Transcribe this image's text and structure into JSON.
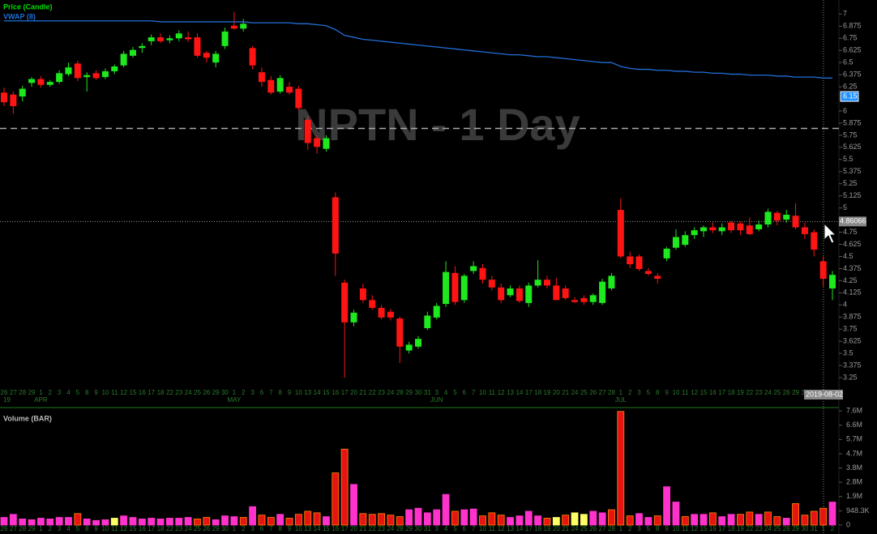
{
  "chart_data": [
    {
      "type": "candlestick",
      "watermark": "NPTN - 1 Day",
      "categories": [
        "26",
        "27",
        "28",
        "29",
        "1",
        "2",
        "3",
        "4",
        "5",
        "8",
        "9",
        "10",
        "11",
        "12",
        "15",
        "16",
        "17",
        "18",
        "22",
        "23",
        "24",
        "25",
        "26",
        "29",
        "30",
        "1",
        "2",
        "3",
        "6",
        "7",
        "8",
        "9",
        "10",
        "13",
        "14",
        "15",
        "16",
        "17",
        "20",
        "21",
        "22",
        "23",
        "24",
        "28",
        "29",
        "30",
        "31",
        "3",
        "4",
        "5",
        "6",
        "7",
        "10",
        "11",
        "12",
        "13",
        "14",
        "17",
        "18",
        "19",
        "20",
        "21",
        "24",
        "25",
        "26",
        "27",
        "28",
        "1",
        "2",
        "3",
        "5",
        "8",
        "9",
        "10",
        "11",
        "12",
        "15",
        "16",
        "17",
        "18",
        "19",
        "22",
        "23",
        "24",
        "25",
        "26",
        "29",
        "30",
        "31",
        "1",
        "2"
      ],
      "months": [
        {
          "label": "APR",
          "category": 4
        },
        {
          "label": "MAY",
          "category": 25
        },
        {
          "label": "JUN",
          "category": 47
        },
        {
          "label": "JUL",
          "category": 67
        }
      ],
      "year_label": "19",
      "series": [
        {
          "name": "Price (Candle)",
          "color": "#00e000",
          "up_color": "#1ee81e",
          "down_color": "#ff1414",
          "open": [
            6.19,
            6.17,
            6.15,
            6.29,
            6.33,
            6.27,
            6.3,
            6.38,
            6.49,
            6.35,
            6.39,
            6.35,
            6.41,
            6.47,
            6.57,
            6.65,
            6.72,
            6.76,
            6.73,
            6.75,
            6.76,
            6.76,
            6.6,
            6.5,
            6.67,
            6.88,
            6.85,
            6.65,
            6.4,
            6.32,
            6.2,
            6.25,
            6.23,
            5.91,
            5.72,
            5.61,
            5.11,
            4.23,
            3.82,
            4.17,
            4.05,
            3.97,
            3.93,
            3.86,
            3.53,
            3.57,
            3.76,
            3.87,
            4.01,
            4.33,
            4.05,
            4.35,
            4.38,
            4.26,
            4.18,
            4.1,
            4.17,
            4.02,
            4.2,
            4.26,
            4.2,
            4.17,
            4.05,
            4.07,
            4.03,
            4.02,
            4.17,
            4.98,
            4.5,
            4.5,
            4.35,
            4.3,
            4.48,
            4.59,
            4.62,
            4.72,
            4.76,
            4.8,
            4.76,
            4.85,
            4.84,
            4.82,
            4.78,
            4.83,
            4.95,
            4.88,
            4.92,
            4.8,
            4.75,
            4.45,
            4.17
          ],
          "high": [
            6.24,
            6.2,
            6.26,
            6.35,
            6.36,
            6.32,
            6.42,
            6.5,
            6.52,
            6.4,
            6.42,
            6.44,
            6.48,
            6.62,
            6.66,
            6.7,
            6.79,
            6.8,
            6.78,
            6.83,
            6.82,
            6.8,
            6.62,
            6.62,
            6.86,
            7.02,
            6.95,
            6.67,
            6.45,
            6.36,
            6.37,
            6.3,
            6.26,
            5.95,
            5.75,
            5.75,
            5.16,
            4.26,
            3.95,
            4.22,
            4.1,
            4.0,
            3.96,
            3.88,
            3.62,
            3.68,
            3.93,
            4.02,
            4.45,
            4.4,
            4.32,
            4.45,
            4.42,
            4.3,
            4.22,
            4.2,
            4.2,
            4.23,
            4.46,
            4.3,
            4.28,
            4.2,
            4.08,
            4.1,
            4.12,
            4.27,
            4.33,
            5.1,
            4.55,
            4.52,
            4.38,
            4.33,
            4.6,
            4.78,
            4.76,
            4.8,
            4.82,
            4.85,
            4.84,
            4.87,
            4.86,
            4.9,
            4.87,
            4.99,
            4.97,
            4.98,
            5.05,
            4.85,
            4.78,
            4.5,
            4.35
          ],
          "low": [
            6.05,
            5.97,
            6.1,
            6.25,
            6.24,
            6.25,
            6.28,
            6.36,
            6.31,
            6.2,
            6.32,
            6.33,
            6.38,
            6.45,
            6.55,
            6.6,
            6.68,
            6.7,
            6.7,
            6.72,
            6.71,
            6.55,
            6.5,
            6.45,
            6.64,
            6.84,
            6.82,
            6.43,
            6.25,
            6.17,
            6.18,
            6.17,
            6.01,
            5.6,
            5.56,
            5.58,
            4.3,
            3.25,
            3.78,
            4.02,
            3.95,
            3.85,
            3.84,
            3.4,
            3.5,
            3.55,
            3.74,
            3.85,
            3.98,
            4.0,
            4.02,
            4.32,
            4.22,
            4.15,
            4.02,
            4.08,
            4.02,
            3.98,
            4.18,
            4.17,
            4.05,
            4.05,
            4.02,
            4.0,
            4.0,
            4.0,
            4.15,
            4.48,
            4.38,
            4.35,
            4.3,
            4.22,
            4.45,
            4.57,
            4.6,
            4.68,
            4.7,
            4.74,
            4.72,
            4.74,
            4.72,
            4.72,
            4.76,
            4.8,
            4.82,
            4.85,
            4.78,
            4.68,
            4.5,
            4.19,
            4.05
          ],
          "close": [
            6.09,
            6.05,
            6.23,
            6.33,
            6.27,
            6.3,
            6.39,
            6.45,
            6.34,
            6.37,
            6.34,
            6.41,
            6.46,
            6.59,
            6.63,
            6.67,
            6.76,
            6.72,
            6.75,
            6.8,
            6.74,
            6.57,
            6.55,
            6.59,
            6.82,
            6.85,
            6.9,
            6.47,
            6.3,
            6.19,
            6.34,
            6.19,
            6.03,
            5.67,
            5.63,
            5.72,
            4.53,
            3.82,
            3.92,
            4.05,
            3.97,
            3.87,
            3.87,
            3.57,
            3.59,
            3.65,
            3.89,
            3.99,
            4.34,
            4.03,
            4.3,
            4.4,
            4.26,
            4.18,
            4.05,
            4.17,
            4.04,
            4.2,
            4.26,
            4.2,
            4.05,
            4.07,
            4.03,
            4.03,
            4.1,
            4.24,
            4.3,
            4.5,
            4.42,
            4.37,
            4.32,
            4.27,
            4.58,
            4.7,
            4.72,
            4.77,
            4.8,
            4.77,
            4.8,
            4.77,
            4.77,
            4.73,
            4.83,
            4.96,
            4.87,
            4.93,
            4.8,
            4.73,
            4.57,
            4.27,
            4.31
          ]
        },
        {
          "name": "VWAP (8)",
          "color": "#1f6fd8",
          "values": [
            6.93,
            6.93,
            6.93,
            6.93,
            6.93,
            6.93,
            6.93,
            6.93,
            6.93,
            6.93,
            6.93,
            6.93,
            6.93,
            6.93,
            6.93,
            6.93,
            6.93,
            6.92,
            6.92,
            6.92,
            6.92,
            6.92,
            6.92,
            6.92,
            6.92,
            6.92,
            6.92,
            6.91,
            6.91,
            6.91,
            6.91,
            6.91,
            6.9,
            6.9,
            6.89,
            6.88,
            6.84,
            6.78,
            6.76,
            6.74,
            6.73,
            6.72,
            6.71,
            6.7,
            6.69,
            6.68,
            6.67,
            6.66,
            6.65,
            6.64,
            6.63,
            6.62,
            6.61,
            6.6,
            6.59,
            6.58,
            6.58,
            6.57,
            6.56,
            6.56,
            6.55,
            6.54,
            6.53,
            6.52,
            6.51,
            6.5,
            6.5,
            6.46,
            6.44,
            6.43,
            6.43,
            6.42,
            6.42,
            6.41,
            6.41,
            6.4,
            6.4,
            6.39,
            6.39,
            6.38,
            6.38,
            6.37,
            6.37,
            6.37,
            6.36,
            6.36,
            6.35,
            6.35,
            6.35,
            6.34,
            6.34
          ]
        }
      ],
      "ylim": [
        3.15,
        7.12
      ],
      "yticks": [
        7,
        6.875,
        6.75,
        6.625,
        6.5,
        6.375,
        6.25,
        6,
        5.875,
        5.75,
        5.625,
        5.5,
        5.375,
        5.25,
        5.125,
        5,
        4.875,
        4.75,
        4.625,
        4.5,
        4.375,
        4.25,
        4.125,
        4,
        3.875,
        3.75,
        3.625,
        3.5,
        3.375,
        3.25
      ],
      "reference_line": 5.82,
      "last_label": 6.15,
      "cursor_value": 4.86066,
      "cursor_date": "2019-08-02"
    },
    {
      "type": "bar",
      "title": "Volume (BAR)",
      "values": [
        510000,
        714000,
        408000,
        357000,
        459000,
        408000,
        510000,
        510000,
        765000,
        408000,
        306000,
        357000,
        459000,
        612000,
        510000,
        408000,
        459000,
        408000,
        459000,
        459000,
        510000,
        408000,
        510000,
        357000,
        612000,
        561000,
        510000,
        1224000,
        663000,
        510000,
        714000,
        459000,
        714000,
        918000,
        816000,
        561000,
        3468000,
        5049000,
        2703000,
        765000,
        714000,
        765000,
        663000,
        561000,
        1020000,
        1122000,
        816000,
        1020000,
        2040000,
        918000,
        1020000,
        1071000,
        612000,
        816000,
        663000,
        510000,
        612000,
        918000,
        612000,
        459000,
        510000,
        663000,
        816000,
        714000,
        918000,
        816000,
        1020000,
        7550000,
        612000,
        765000,
        510000,
        612000,
        2550000,
        1530000,
        561000,
        714000,
        714000,
        816000,
        561000,
        714000,
        714000,
        867000,
        714000,
        867000,
        561000,
        459000,
        1428000,
        663000,
        918000,
        1122000,
        1530000
      ],
      "colors": [
        "#ff33cc",
        "#ff33cc",
        "#ff33cc",
        "#ff33cc",
        "#ff33cc",
        "#ff33cc",
        "#ff33cc",
        "#ff33cc",
        "#e81414",
        "#ff33cc",
        "#ff33cc",
        "#ff33cc",
        "#ffff66",
        "#ff33cc",
        "#ff33cc",
        "#ff33cc",
        "#ff33cc",
        "#ff33cc",
        "#ff33cc",
        "#ff33cc",
        "#ff33cc",
        "#e81414",
        "#e81414",
        "#ff33cc",
        "#ff33cc",
        "#ff33cc",
        "#e81414",
        "#ff33cc",
        "#e81414",
        "#e81414",
        "#ff33cc",
        "#e81414",
        "#e81414",
        "#e81414",
        "#e81414",
        "#ff33cc",
        "#e81414",
        "#e81414",
        "#ff33cc",
        "#e81414",
        "#e81414",
        "#e81414",
        "#e81414",
        "#e81414",
        "#ff33cc",
        "#ff33cc",
        "#ff33cc",
        "#ff33cc",
        "#ff33cc",
        "#e81414",
        "#ff33cc",
        "#ff33cc",
        "#e81414",
        "#e81414",
        "#e81414",
        "#ff33cc",
        "#ff33cc",
        "#ff33cc",
        "#ff33cc",
        "#e81414",
        "#ffff66",
        "#e81414",
        "#ffff66",
        "#ffff66",
        "#ff33cc",
        "#ff33cc",
        "#e81414",
        "#e81414",
        "#e81414",
        "#ff33cc",
        "#ff33cc",
        "#e81414",
        "#ff33cc",
        "#ff33cc",
        "#e81414",
        "#ff33cc",
        "#ff33cc",
        "#e81414",
        "#ff33cc",
        "#ff33cc",
        "#e81414",
        "#e81414",
        "#ff33cc",
        "#e81414",
        "#e81414",
        "#ff33cc",
        "#e81414",
        "#e81414",
        "#e81414",
        "#e81414",
        "#ff33cc"
      ],
      "ylim": [
        0,
        7700000
      ],
      "yticks": [
        0,
        {
          "value": 948300,
          "label": "948.3K"
        },
        {
          "value": 1896600,
          "label": "1.9M"
        },
        {
          "value": 2844900,
          "label": "2.8M"
        },
        {
          "value": 3793200,
          "label": "3.8M"
        },
        {
          "value": 4741500,
          "label": "4.7M"
        },
        {
          "value": 5689800,
          "label": "5.7M"
        },
        {
          "value": 6638100,
          "label": "6.6M"
        },
        {
          "value": 7586400,
          "label": "7.6M"
        }
      ]
    }
  ]
}
